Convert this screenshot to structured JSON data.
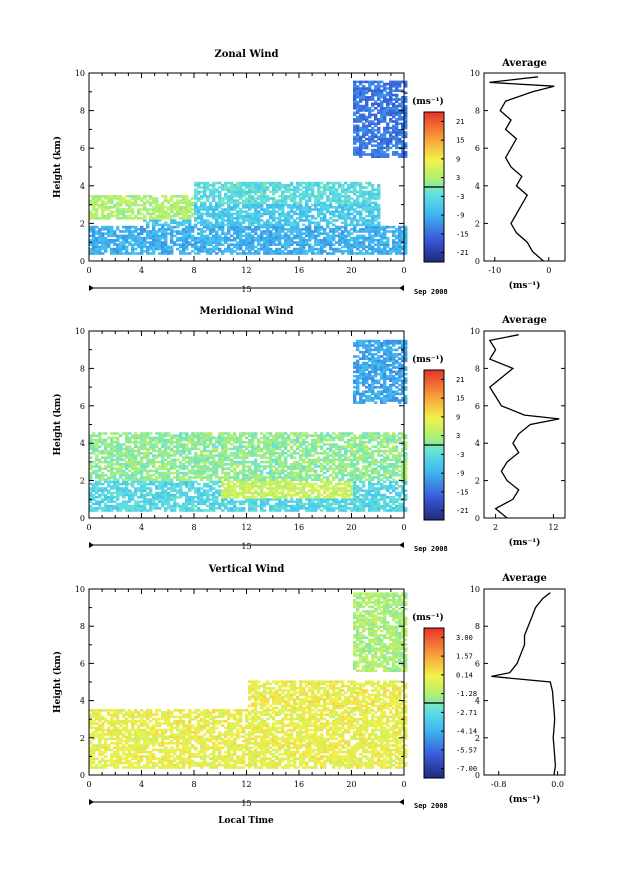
{
  "chart_data": [
    {
      "type": "heatmap",
      "title": "Zonal Wind",
      "xlabel": "",
      "ylabel": "Height (km)",
      "xlim": [
        0,
        24
      ],
      "ylim": [
        0,
        10
      ],
      "x_ticks": [
        "0",
        "4",
        "8",
        "12",
        "16",
        "20",
        "0"
      ],
      "y_ticks": [
        "0",
        "2",
        "4",
        "6",
        "8",
        "10"
      ],
      "date_day": "15",
      "date_month_year": "Sep 2008",
      "colorbar": {
        "unit": "(ms⁻¹)",
        "labels": [
          "21",
          "15",
          "9",
          "3",
          "-3",
          "-9",
          "-15",
          "-21"
        ],
        "range": [
          -24,
          24
        ]
      },
      "fields": [
        {
          "x": [
            0,
            24
          ],
          "y": [
            0.3,
            1.8
          ],
          "value": -9
        },
        {
          "x": [
            4,
            22
          ],
          "y": [
            1.8,
            3.2
          ],
          "value": -6
        },
        {
          "x": [
            0,
            8
          ],
          "y": [
            2.2,
            3.4
          ],
          "value": 3
        },
        {
          "x": [
            8,
            22
          ],
          "y": [
            3.0,
            4.2
          ],
          "value": -3
        },
        {
          "x": [
            20,
            24
          ],
          "y": [
            5.5,
            9.5
          ],
          "value": -14
        }
      ],
      "avg_profile": {
        "title": "Average",
        "unit": "(ms⁻¹)",
        "x_ticks": [
          "-10",
          "0"
        ],
        "xlim": [
          -12,
          3
        ],
        "heights": [
          0.0,
          0.5,
          1.0,
          1.5,
          2.0,
          2.5,
          3.0,
          3.5,
          4.0,
          4.5,
          5.0,
          5.5,
          6.0,
          6.5,
          7.0,
          7.5,
          8.0,
          8.5,
          9.0,
          9.3,
          9.5,
          9.8
        ],
        "values": [
          -1,
          -3,
          -4,
          -6,
          -7,
          -6,
          -5,
          -4,
          -6,
          -5,
          -7,
          -8,
          -7,
          -6,
          -8,
          -7,
          -9,
          -8,
          -3,
          1,
          -11,
          -2
        ]
      }
    },
    {
      "type": "heatmap",
      "title": "Meridional Wind",
      "xlabel": "",
      "ylabel": "Height (km)",
      "xlim": [
        0,
        24
      ],
      "ylim": [
        0,
        10
      ],
      "x_ticks": [
        "0",
        "4",
        "8",
        "12",
        "16",
        "20",
        "0"
      ],
      "y_ticks": [
        "0",
        "2",
        "4",
        "6",
        "8",
        "10"
      ],
      "date_day": "15",
      "date_month_year": "Sep 2008",
      "colorbar": {
        "unit": "(ms⁻¹)",
        "labels": [
          "21",
          "15",
          "9",
          "3",
          "-3",
          "-9",
          "-15",
          "-21"
        ],
        "range": [
          -24,
          24
        ]
      },
      "fields": [
        {
          "x": [
            0,
            24
          ],
          "y": [
            0.3,
            2.0
          ],
          "value": -4
        },
        {
          "x": [
            10,
            20
          ],
          "y": [
            1.0,
            3.0
          ],
          "value": 5
        },
        {
          "x": [
            0,
            24
          ],
          "y": [
            2.0,
            4.5
          ],
          "value": 1
        },
        {
          "x": [
            20,
            24
          ],
          "y": [
            6.0,
            9.5
          ],
          "value": -10
        }
      ],
      "avg_profile": {
        "title": "Average",
        "unit": "(ms⁻¹)",
        "x_ticks": [
          "2",
          "12"
        ],
        "xlim": [
          0,
          14
        ],
        "heights": [
          0.0,
          0.5,
          1.0,
          1.5,
          2.0,
          2.5,
          3.0,
          3.5,
          4.0,
          4.5,
          5.0,
          5.3,
          5.5,
          6.0,
          6.5,
          7.0,
          7.5,
          8.0,
          8.5,
          9.0,
          9.5,
          9.8
        ],
        "values": [
          4,
          2,
          5,
          6,
          4,
          3,
          4,
          6,
          5,
          6,
          8,
          13,
          7,
          3,
          2,
          1,
          3,
          5,
          1,
          2,
          1,
          6
        ]
      }
    },
    {
      "type": "heatmap",
      "title": "Vertical Wind",
      "xlabel": "Local Time",
      "ylabel": "Height (km)",
      "xlim": [
        0,
        24
      ],
      "ylim": [
        0,
        10
      ],
      "x_ticks": [
        "0",
        "4",
        "8",
        "12",
        "16",
        "20",
        "0"
      ],
      "y_ticks": [
        "0",
        "2",
        "4",
        "6",
        "8",
        "10"
      ],
      "date_day": "15",
      "date_month_year": "Sep 2008",
      "colorbar": {
        "unit": "(ms⁻¹)",
        "labels": [
          "3.00",
          "1.57",
          "0.14",
          "-1.28",
          "-2.71",
          "-4.14",
          "-5.57",
          "-7.00"
        ],
        "range": [
          -8,
          4
        ]
      },
      "fields": [
        {
          "x": [
            0,
            24
          ],
          "y": [
            0.3,
            3.5
          ],
          "value": 0.0
        },
        {
          "x": [
            12,
            24
          ],
          "y": [
            3.5,
            5.0
          ],
          "value": 0.1
        },
        {
          "x": [
            20,
            24
          ],
          "y": [
            5.5,
            9.8
          ],
          "value": -1.3
        }
      ],
      "avg_profile": {
        "title": "Average",
        "unit": "(ms⁻¹)",
        "x_ticks": [
          "-0.8",
          "0.0"
        ],
        "xlim": [
          -1.0,
          0.1
        ],
        "heights": [
          0.0,
          0.5,
          1.0,
          1.5,
          2.0,
          2.5,
          3.0,
          3.5,
          4.0,
          4.5,
          5.0,
          5.3,
          5.5,
          6.0,
          6.5,
          7.0,
          7.5,
          8.0,
          8.5,
          9.0,
          9.5,
          9.8
        ],
        "values": [
          -0.05,
          -0.03,
          -0.04,
          -0.05,
          -0.06,
          -0.05,
          -0.04,
          -0.05,
          -0.06,
          -0.07,
          -0.1,
          -0.9,
          -0.65,
          -0.55,
          -0.5,
          -0.45,
          -0.45,
          -0.4,
          -0.35,
          -0.3,
          -0.2,
          -0.1
        ]
      }
    }
  ]
}
